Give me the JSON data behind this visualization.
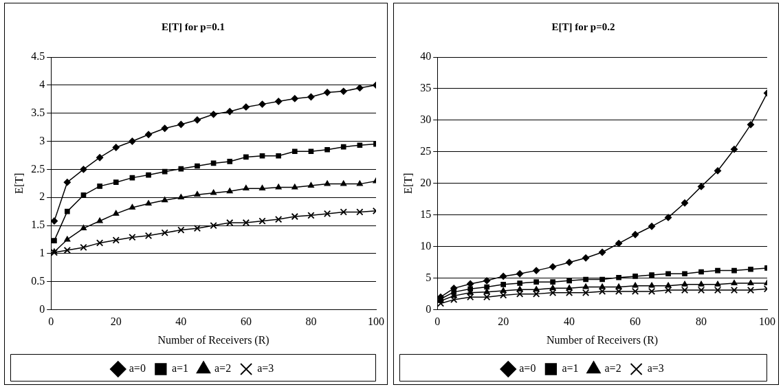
{
  "chart_data": [
    {
      "type": "line",
      "title": "E[T] for p=0.1",
      "xlabel": "Number of Receivers (R)",
      "ylabel": "E[T]",
      "x": [
        1,
        5,
        10,
        15,
        20,
        25,
        30,
        35,
        40,
        45,
        50,
        55,
        60,
        65,
        70,
        75,
        80,
        85,
        90,
        95,
        100
      ],
      "xlim": [
        0,
        100
      ],
      "xticks": [
        0,
        20,
        40,
        60,
        80,
        100
      ],
      "ylim": [
        0,
        4.5
      ],
      "yticks": [
        0,
        0.5,
        1,
        1.5,
        2,
        2.5,
        3,
        3.5,
        4,
        4.5
      ],
      "grid": "y",
      "legend": "bottom",
      "line_style": "solid",
      "series": [
        {
          "name": "a=0",
          "color": "#000000",
          "marker": "diamond",
          "values": [
            1.58,
            2.27,
            2.5,
            2.71,
            2.89,
            3.0,
            3.12,
            3.23,
            3.3,
            3.38,
            3.48,
            3.53,
            3.61,
            3.66,
            3.71,
            3.76,
            3.79,
            3.87,
            3.89,
            3.95,
            4.0
          ]
        },
        {
          "name": "a=1",
          "color": "#000000",
          "marker": "square",
          "values": [
            1.23,
            1.75,
            2.04,
            2.2,
            2.27,
            2.35,
            2.4,
            2.46,
            2.51,
            2.56,
            2.61,
            2.64,
            2.72,
            2.74,
            2.74,
            2.82,
            2.82,
            2.85,
            2.9,
            2.93,
            2.95
          ]
        },
        {
          "name": "a=2",
          "color": "#000000",
          "marker": "triangle",
          "values": [
            1.03,
            1.25,
            1.45,
            1.58,
            1.71,
            1.82,
            1.89,
            1.95,
            2.0,
            2.05,
            2.08,
            2.11,
            2.16,
            2.16,
            2.18,
            2.18,
            2.21,
            2.24,
            2.24,
            2.24,
            2.29
          ]
        },
        {
          "name": "a=3",
          "color": "#000000",
          "marker": "cross",
          "values": [
            1.02,
            1.06,
            1.11,
            1.19,
            1.24,
            1.29,
            1.32,
            1.37,
            1.42,
            1.45,
            1.5,
            1.55,
            1.55,
            1.58,
            1.61,
            1.66,
            1.68,
            1.71,
            1.74,
            1.74,
            1.76
          ]
        }
      ]
    },
    {
      "type": "line",
      "title": "E[T] for p=0.2",
      "xlabel": "Number of Receivers (R)",
      "ylabel": "E[T]",
      "x": [
        1,
        5,
        10,
        15,
        20,
        25,
        30,
        35,
        40,
        45,
        50,
        55,
        60,
        65,
        70,
        75,
        80,
        85,
        90,
        95,
        100
      ],
      "xlim": [
        0,
        100
      ],
      "xticks": [
        0,
        20,
        40,
        60,
        80,
        100
      ],
      "ylim": [
        0,
        40
      ],
      "yticks": [
        0,
        5,
        10,
        15,
        20,
        25,
        30,
        35,
        40
      ],
      "grid": "y",
      "legend": "bottom",
      "line_style": "solid",
      "series": [
        {
          "name": "a=0",
          "color": "#000000",
          "marker": "diamond",
          "values": [
            2.0,
            3.4,
            4.1,
            4.6,
            5.3,
            5.7,
            6.2,
            6.8,
            7.5,
            8.2,
            9.1,
            10.5,
            11.9,
            13.2,
            14.6,
            16.9,
            19.5,
            22.0,
            25.4,
            29.3,
            34.3
          ]
        },
        {
          "name": "a=1",
          "color": "#000000",
          "marker": "square",
          "values": [
            1.7,
            2.8,
            3.3,
            3.6,
            4.0,
            4.2,
            4.4,
            4.4,
            4.6,
            4.8,
            4.8,
            5.1,
            5.3,
            5.5,
            5.7,
            5.7,
            6.0,
            6.2,
            6.2,
            6.4,
            6.6
          ]
        },
        {
          "name": "a=2",
          "color": "#000000",
          "marker": "triangle",
          "values": [
            1.4,
            2.2,
            2.7,
            2.8,
            3.0,
            3.2,
            3.2,
            3.4,
            3.4,
            3.6,
            3.6,
            3.6,
            3.8,
            3.8,
            3.8,
            4.0,
            4.0,
            4.0,
            4.2,
            4.2,
            4.2
          ]
        },
        {
          "name": "a=3",
          "color": "#000000",
          "marker": "cross",
          "values": [
            1.0,
            1.6,
            2.0,
            2.0,
            2.3,
            2.5,
            2.5,
            2.7,
            2.7,
            2.7,
            2.9,
            2.9,
            2.9,
            2.9,
            3.1,
            3.1,
            3.1,
            3.1,
            3.1,
            3.1,
            3.3
          ]
        }
      ]
    }
  ]
}
